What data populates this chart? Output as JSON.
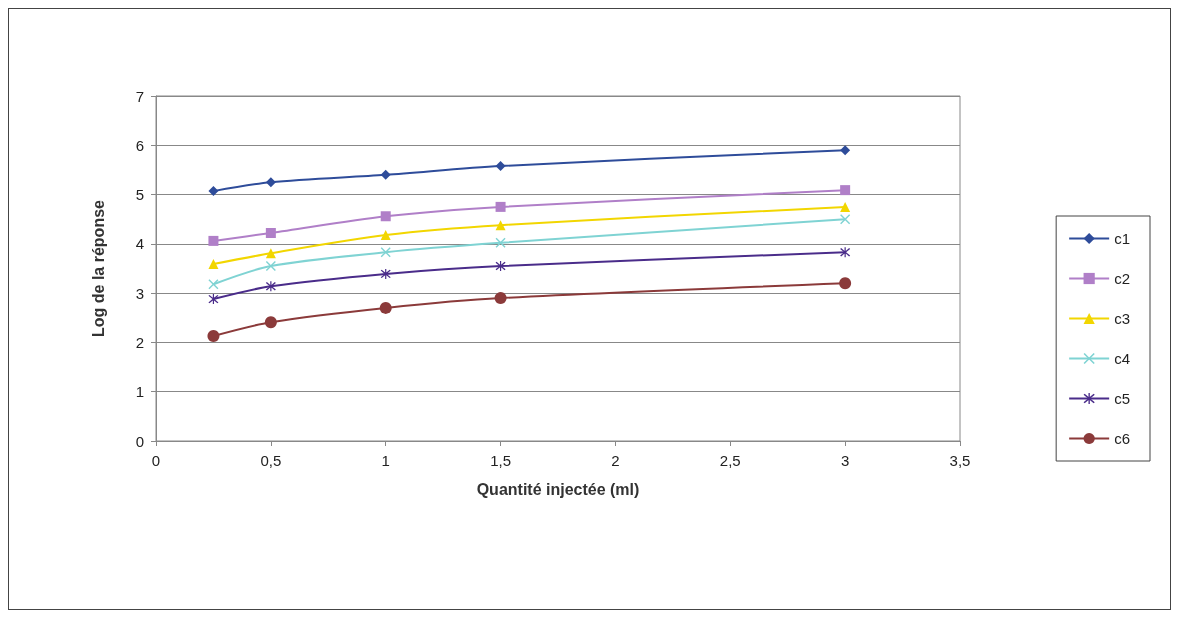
{
  "chart_data": {
    "type": "line",
    "xlabel": "Quantité injectée (ml)",
    "ylabel": "Log de la réponse",
    "x": [
      0.25,
      0.5,
      1,
      1.5,
      3
    ],
    "xlim": [
      0,
      3.5
    ],
    "xticks": [
      0,
      {
        "value": 0.5,
        "label": "0,5"
      },
      1,
      {
        "value": 1.5,
        "label": "1,5"
      },
      2,
      {
        "value": 2.5,
        "label": "2,5"
      },
      3,
      {
        "value": 3.5,
        "label": "3,5"
      }
    ],
    "ylim": [
      0,
      7
    ],
    "yticks": [
      0,
      1,
      2,
      3,
      4,
      5,
      6,
      7
    ],
    "grid": "y",
    "legend": "right",
    "series": [
      {
        "name": "c1",
        "color": "#2e4c9a",
        "marker": "diamond",
        "values": [
          5.07,
          5.25,
          5.4,
          5.58,
          5.9
        ]
      },
      {
        "name": "c2",
        "color": "#b07fc8",
        "marker": "square",
        "values": [
          4.06,
          4.22,
          4.56,
          4.75,
          5.09
        ]
      },
      {
        "name": "c3",
        "color": "#f2d600",
        "marker": "triangle",
        "values": [
          3.59,
          3.81,
          4.18,
          4.38,
          4.75
        ]
      },
      {
        "name": "c4",
        "color": "#7fd3d3",
        "marker": "cross",
        "values": [
          3.18,
          3.55,
          3.83,
          4.02,
          4.5
        ]
      },
      {
        "name": "c5",
        "color": "#4a2c8a",
        "marker": "star",
        "values": [
          2.88,
          3.14,
          3.39,
          3.55,
          3.83
        ]
      },
      {
        "name": "c6",
        "color": "#8b3a3a",
        "marker": "circle",
        "values": [
          2.13,
          2.41,
          2.7,
          2.9,
          3.2
        ]
      }
    ]
  }
}
